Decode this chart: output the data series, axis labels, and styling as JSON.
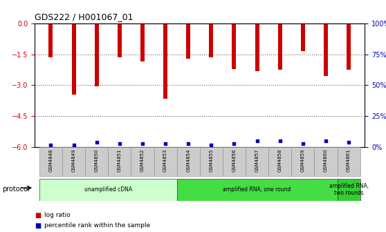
{
  "title": "GDS222 / H001067_01",
  "samples": [
    "GSM4848",
    "GSM4849",
    "GSM4850",
    "GSM4851",
    "GSM4852",
    "GSM4853",
    "GSM4854",
    "GSM4855",
    "GSM4856",
    "GSM4857",
    "GSM4858",
    "GSM4859",
    "GSM4860",
    "GSM4861"
  ],
  "log_ratio": [
    -1.65,
    -3.45,
    -3.05,
    -1.65,
    -1.85,
    -3.65,
    -1.7,
    -1.65,
    -2.2,
    -2.3,
    -2.25,
    -1.35,
    -2.55,
    -2.25
  ],
  "percentile_pct": [
    2,
    2,
    4,
    3,
    3,
    3,
    3,
    2,
    3,
    5,
    5,
    3,
    5,
    4
  ],
  "ylim_left": [
    -6,
    0
  ],
  "ylim_right": [
    0,
    100
  ],
  "yticks_left": [
    0,
    -1.5,
    -3,
    -4.5,
    -6
  ],
  "yticks_right": [
    0,
    25,
    50,
    75,
    100
  ],
  "bar_color": "#cc0000",
  "dot_color": "#0000bb",
  "protocol_groups": [
    {
      "label": "unamplified cDNA",
      "start": 0,
      "end": 5,
      "color": "#ccffcc"
    },
    {
      "label": "amplified RNA, one round",
      "start": 6,
      "end": 12,
      "color": "#44dd44"
    },
    {
      "label": "amplified RNA,\ntwo rounds",
      "start": 13,
      "end": 13,
      "color": "#33cc33"
    }
  ],
  "legend_items": [
    {
      "label": "log ratio",
      "color": "#cc0000"
    },
    {
      "label": "percentile rank within the sample",
      "color": "#0000bb"
    }
  ],
  "background_color": "#ffffff",
  "grid_color": "#666666",
  "ylabel_left_color": "#cc0000",
  "ylabel_right_color": "#0000bb",
  "title_color": "#000000",
  "protocol_label": "protocol",
  "xtick_bg": "#cccccc"
}
